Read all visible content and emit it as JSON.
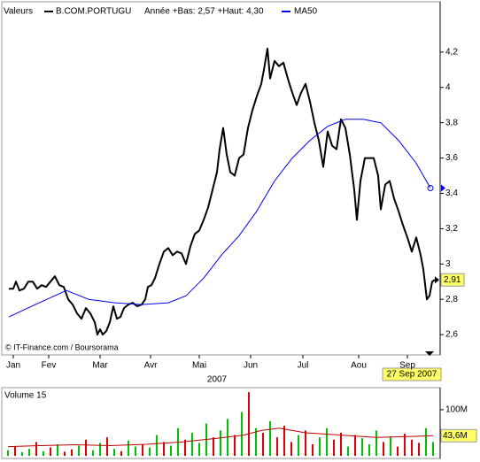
{
  "chart_data": [
    {
      "type": "line",
      "legend_label": "Valeurs",
      "subtitle": "Année +Bas: 2,57 +Haut: 4,30",
      "watermark": "© IT-Finance.com / Boursorama",
      "xlabel": "2007",
      "date_label": "27 Sep 2007",
      "end_label": {
        "value": 2.91,
        "label": "2,91"
      },
      "xlim": [
        0,
        246
      ],
      "xticks": [
        {
          "value": 5,
          "label": "Jan"
        },
        {
          "value": 25,
          "label": "Fev"
        },
        {
          "value": 54,
          "label": "Mar"
        },
        {
          "value": 82.5,
          "label": "Avr"
        },
        {
          "value": 110,
          "label": "Mai"
        },
        {
          "value": 139,
          "label": "Jun"
        },
        {
          "value": 168.5,
          "label": "Jul"
        },
        {
          "value": 200,
          "label": "Aou"
        },
        {
          "value": 227.5,
          "label": "Sep"
        }
      ],
      "ylim": [
        2.49,
        4.47
      ],
      "yticks": [
        {
          "value": 2.6,
          "label": "2,6"
        },
        {
          "value": 2.8,
          "label": "2,8"
        },
        3,
        {
          "value": 3.2,
          "label": "3,2"
        },
        {
          "value": 3.4,
          "label": "3,4"
        },
        {
          "value": 3.6,
          "label": "3,6"
        },
        {
          "value": 3.8,
          "label": "3,8"
        },
        4,
        {
          "value": 4.2,
          "label": "4,2"
        }
      ],
      "grid": false,
      "series": [
        {
          "name": "B.COM.PORTUGU",
          "color": "#000000",
          "x": [
            2.5,
            5,
            6.5,
            8.5,
            11,
            13.5,
            16,
            18.5,
            21,
            23.5,
            26,
            28.5,
            31,
            33.5,
            36,
            38.5,
            41,
            43.5,
            46,
            48.5,
            51,
            52.5,
            54,
            55.5,
            57.5,
            59.5,
            61.5,
            63.5,
            65.5,
            67.5,
            70,
            72.5,
            75,
            77.5,
            79.5,
            81,
            83,
            85,
            87.5,
            90,
            92.5,
            95,
            97.5,
            100,
            102.5,
            105,
            107.5,
            110,
            112.5,
            115,
            117.5,
            120,
            121.5,
            123.5,
            125.5,
            127.5,
            130,
            132.5,
            135,
            137.5,
            140,
            142.5,
            145,
            146.5,
            148.5,
            150,
            152.5,
            155,
            157.5,
            160,
            162.5,
            165,
            167.5,
            170,
            172.5,
            175,
            177.5,
            180,
            182.5,
            185,
            187.5,
            190,
            192.5,
            195,
            197.5,
            199,
            201,
            203.5,
            206,
            208.5,
            211,
            212.5,
            215,
            217.5,
            220,
            222.5,
            225,
            227.5,
            230,
            232.5,
            235,
            236.5,
            238.5,
            240,
            241.5,
            243
          ],
          "values": [
            2.86,
            2.86,
            2.9,
            2.85,
            2.86,
            2.9,
            2.9,
            2.86,
            2.88,
            2.87,
            2.9,
            2.93,
            2.88,
            2.87,
            2.8,
            2.77,
            2.72,
            2.69,
            2.75,
            2.72,
            2.67,
            2.6,
            2.63,
            2.6,
            2.62,
            2.67,
            2.76,
            2.69,
            2.7,
            2.75,
            2.77,
            2.78,
            2.76,
            2.77,
            2.8,
            2.87,
            2.88,
            2.92,
            3.0,
            3.07,
            3.09,
            3.05,
            3.07,
            3.06,
            3.0,
            3.1,
            3.17,
            3.19,
            3.25,
            3.32,
            3.42,
            3.52,
            3.65,
            3.77,
            3.62,
            3.52,
            3.5,
            3.6,
            3.62,
            3.77,
            3.87,
            3.95,
            4.02,
            4.1,
            4.22,
            4.05,
            4.15,
            4.12,
            4.14,
            4.05,
            3.97,
            3.9,
            3.97,
            4.02,
            3.92,
            3.8,
            3.7,
            3.55,
            3.75,
            3.67,
            3.65,
            3.82,
            3.77,
            3.62,
            3.42,
            3.25,
            3.47,
            3.6,
            3.6,
            3.6,
            3.5,
            3.31,
            3.45,
            3.47,
            3.37,
            3.3,
            3.22,
            3.15,
            3.07,
            3.15,
            3.05,
            2.97,
            2.8,
            2.82,
            2.9,
            2.91
          ]
        },
        {
          "name": "MA50",
          "color": "#0000ee",
          "x": [
            2.5,
            17.5,
            35,
            47.5,
            62.5,
            77.5,
            92.5,
            102.5,
            112.5,
            122.5,
            132.5,
            142.5,
            152.5,
            162.5,
            172.5,
            182.5,
            192.5,
            202.5,
            212.5,
            222.5,
            232.5,
            240.5
          ],
          "values": [
            2.7,
            2.77,
            2.85,
            2.8,
            2.78,
            2.77,
            2.78,
            2.82,
            2.92,
            3.05,
            3.16,
            3.3,
            3.47,
            3.6,
            3.7,
            3.78,
            3.82,
            3.82,
            3.8,
            3.7,
            3.57,
            3.43
          ]
        }
      ]
    },
    {
      "type": "bar",
      "title": "Volume 15",
      "ylim": [
        0,
        144
      ],
      "yticks": [
        {
          "value": 100,
          "label": "100M"
        }
      ],
      "x": [
        2,
        6,
        10,
        14,
        18,
        22,
        26,
        30,
        34,
        38,
        42,
        46,
        50,
        54,
        58,
        62,
        66,
        70,
        74,
        78,
        82,
        86,
        90,
        94,
        98,
        102,
        106,
        110,
        114,
        118,
        122,
        126,
        130,
        134,
        138,
        142,
        146,
        150,
        154,
        158,
        162,
        166,
        170,
        174,
        178,
        182,
        186,
        190,
        194,
        198,
        202,
        206,
        210,
        214,
        218,
        222,
        226,
        230,
        234,
        238,
        242
      ],
      "values": [
        12,
        20,
        8,
        15,
        30,
        10,
        18,
        25,
        9,
        14,
        22,
        35,
        12,
        28,
        40,
        15,
        10,
        33,
        20,
        25,
        18,
        45,
        30,
        22,
        60,
        35,
        50,
        28,
        70,
        40,
        55,
        80,
        45,
        95,
        138,
        60,
        50,
        75,
        40,
        65,
        30,
        45,
        55,
        25,
        40,
        60,
        35,
        50,
        20,
        45,
        38,
        25,
        55,
        30,
        42,
        20,
        48,
        35,
        28,
        60,
        30
      ],
      "colors": [
        "#00c000",
        "#e00000",
        "#00c000",
        "#00c000",
        "#e00000",
        "#00c000",
        "#e00000",
        "#00c000",
        "#e00000",
        "#e00000",
        "#00c000",
        "#e00000",
        "#00c000",
        "#00c000",
        "#e00000",
        "#00c000",
        "#e00000",
        "#00c000",
        "#00c000",
        "#e00000",
        "#00c000",
        "#00c000",
        "#e00000",
        "#00c000",
        "#00c000",
        "#e00000",
        "#00c000",
        "#00c000",
        "#00c000",
        "#e00000",
        "#00c000",
        "#00c000",
        "#e00000",
        "#00c000",
        "#e00000",
        "#00c000",
        "#e00000",
        "#00c000",
        "#e00000",
        "#e00000",
        "#e00000",
        "#00c000",
        "#e00000",
        "#e00000",
        "#00c000",
        "#00c000",
        "#e00000",
        "#e00000",
        "#00c000",
        "#e00000",
        "#00c000",
        "#00c000",
        "#00c000",
        "#e00000",
        "#00c000",
        "#e00000",
        "#e00000",
        "#e00000",
        "#e00000",
        "#00c000",
        "#00c000"
      ],
      "ma": {
        "color": "#c00000",
        "x": [
          2,
          20,
          40,
          60,
          80,
          100,
          120,
          135,
          145,
          155,
          170,
          190,
          210,
          230,
          242
        ],
        "values": [
          20,
          22,
          24,
          22,
          25,
          30,
          38,
          45,
          55,
          60,
          50,
          45,
          40,
          42,
          43.6
        ]
      },
      "end_label": {
        "value": 43.6,
        "label": "43,6M"
      }
    }
  ]
}
